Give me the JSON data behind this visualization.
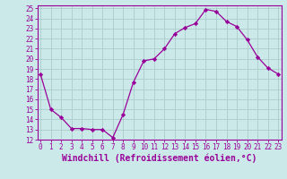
{
  "x": [
    0,
    1,
    2,
    3,
    4,
    5,
    6,
    7,
    8,
    9,
    10,
    11,
    12,
    13,
    14,
    15,
    16,
    17,
    18,
    19,
    20,
    21,
    22,
    23
  ],
  "y": [
    18.5,
    15.0,
    14.2,
    13.1,
    13.1,
    13.0,
    13.0,
    12.2,
    14.5,
    17.7,
    19.8,
    20.0,
    21.0,
    22.5,
    23.1,
    23.5,
    24.9,
    24.7,
    23.7,
    23.2,
    21.9,
    20.2,
    19.1,
    18.5
  ],
  "xlim": [
    -0.3,
    23.3
  ],
  "ylim": [
    12,
    25.3
  ],
  "yticks": [
    12,
    13,
    14,
    15,
    16,
    17,
    18,
    19,
    20,
    21,
    22,
    23,
    24,
    25
  ],
  "xticks": [
    0,
    1,
    2,
    3,
    4,
    5,
    6,
    7,
    8,
    9,
    10,
    11,
    12,
    13,
    14,
    15,
    16,
    17,
    18,
    19,
    20,
    21,
    22,
    23
  ],
  "xlabel": "Windchill (Refroidissement éolien,°C)",
  "line_color": "#990099",
  "marker": "D",
  "marker_size": 2.2,
  "bg_color": "#cce9e9",
  "grid_color": "#b0d0d0",
  "tick_fontsize": 5.5,
  "xlabel_fontsize": 7.0
}
